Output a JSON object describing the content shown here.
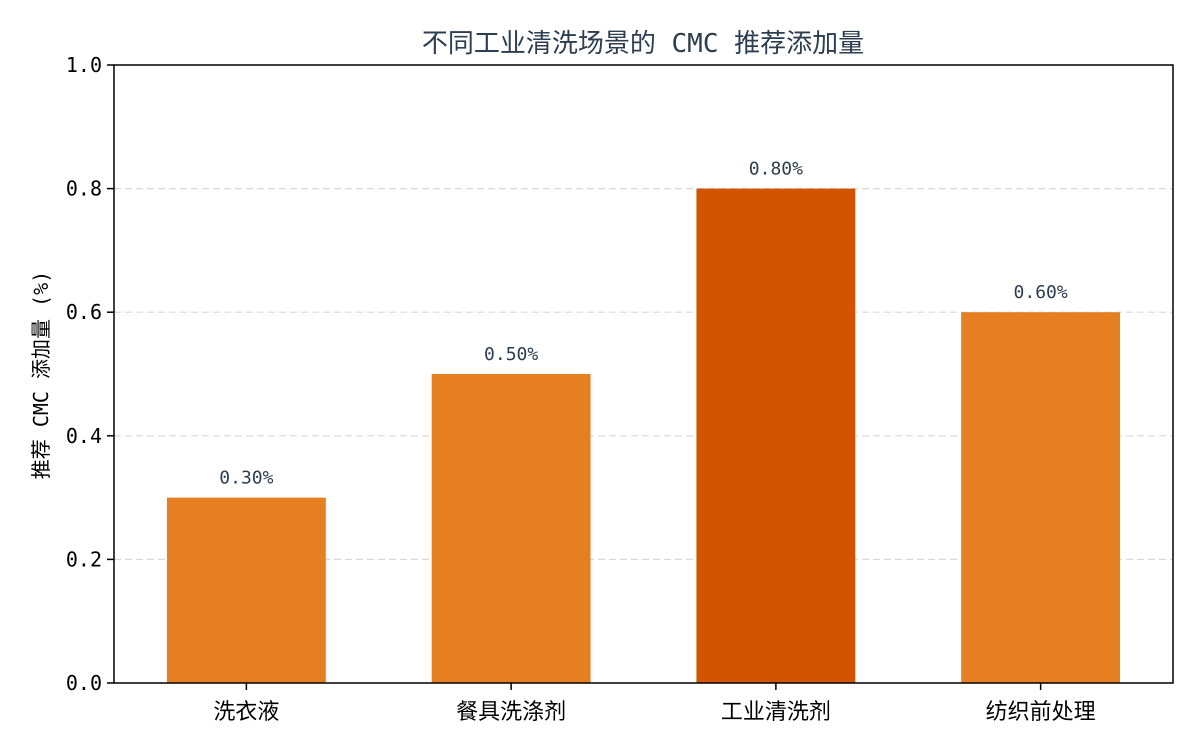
{
  "chart_data": {
    "type": "bar",
    "title": "不同工业清洗场景的 CMC 推荐添加量",
    "xlabel": "",
    "ylabel": "推荐 CMC 添加量 (%)",
    "categories": [
      "洗衣液",
      "餐具洗涤剂",
      "工业清洗剂",
      "纺织前处理"
    ],
    "values": [
      0.3,
      0.5,
      0.8,
      0.6
    ],
    "data_labels": [
      "0.30%",
      "0.50%",
      "0.80%",
      "0.60%"
    ],
    "ylim": [
      0.0,
      1.0
    ],
    "yticks": [
      "0.0",
      "0.2",
      "0.4",
      "0.6",
      "0.8",
      "1.0"
    ],
    "grid": true,
    "bar_colors": [
      "#e67e22",
      "#e67e22",
      "#d35400",
      "#e67e22"
    ],
    "highlight_category": "工业清洗剂",
    "text_color": "#2c3e50",
    "grid_color": "#d9d9d9"
  }
}
